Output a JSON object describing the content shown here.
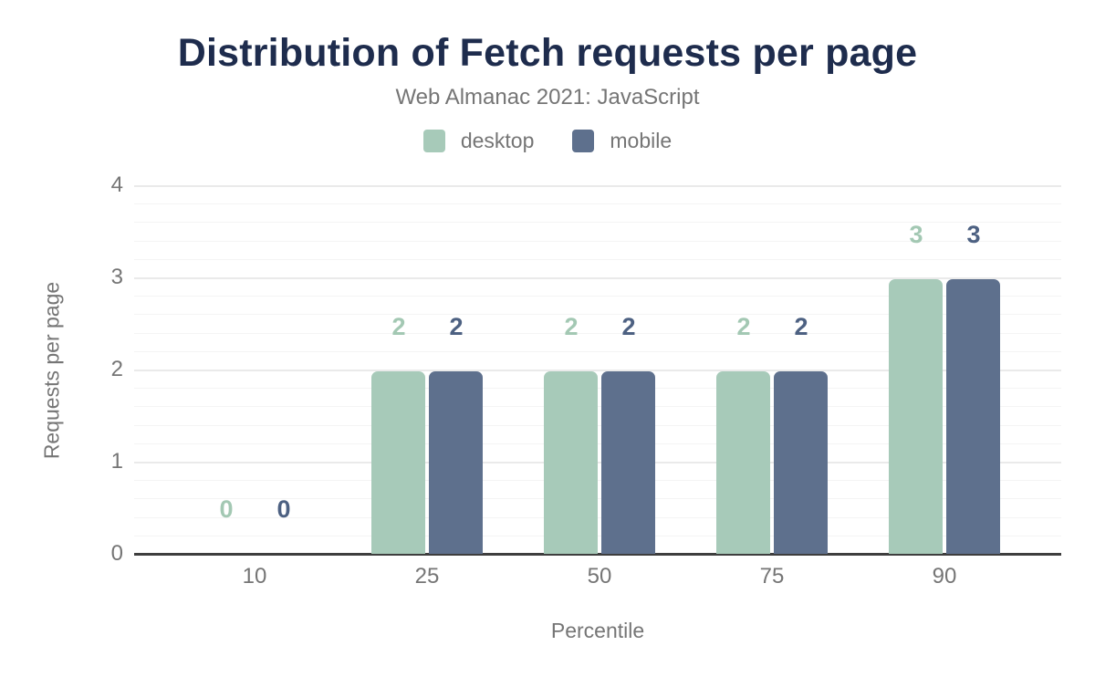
{
  "chart_data": {
    "type": "bar",
    "title": "Distribution of Fetch requests per page",
    "subtitle": "Web Almanac 2021: JavaScript",
    "xlabel": "Percentile",
    "ylabel": "Requests per page",
    "categories": [
      "10",
      "25",
      "50",
      "75",
      "90"
    ],
    "series": [
      {
        "name": "desktop",
        "color": "#a7cab9",
        "label_color": "#a3c8b3",
        "values": [
          0,
          2,
          2,
          2,
          3
        ]
      },
      {
        "name": "mobile",
        "color": "#5e708d",
        "label_color": "#4d6182",
        "values": [
          0,
          2,
          2,
          2,
          3
        ]
      }
    ],
    "ylim": [
      0,
      4
    ],
    "y_ticks": [
      "0",
      "1",
      "2",
      "3",
      "4"
    ],
    "minor_grid_step": 0.2,
    "grid": true,
    "data_labels": true,
    "legend_position": "top",
    "colors": {
      "title": "#1e2c4d",
      "subtitle_text": "#757575",
      "axis_text": "#757575",
      "axis_line": "#3e3e3e",
      "major_grid": "#eaeaea",
      "minor_grid": "#f4f4f4",
      "background": "#ffffff"
    }
  }
}
